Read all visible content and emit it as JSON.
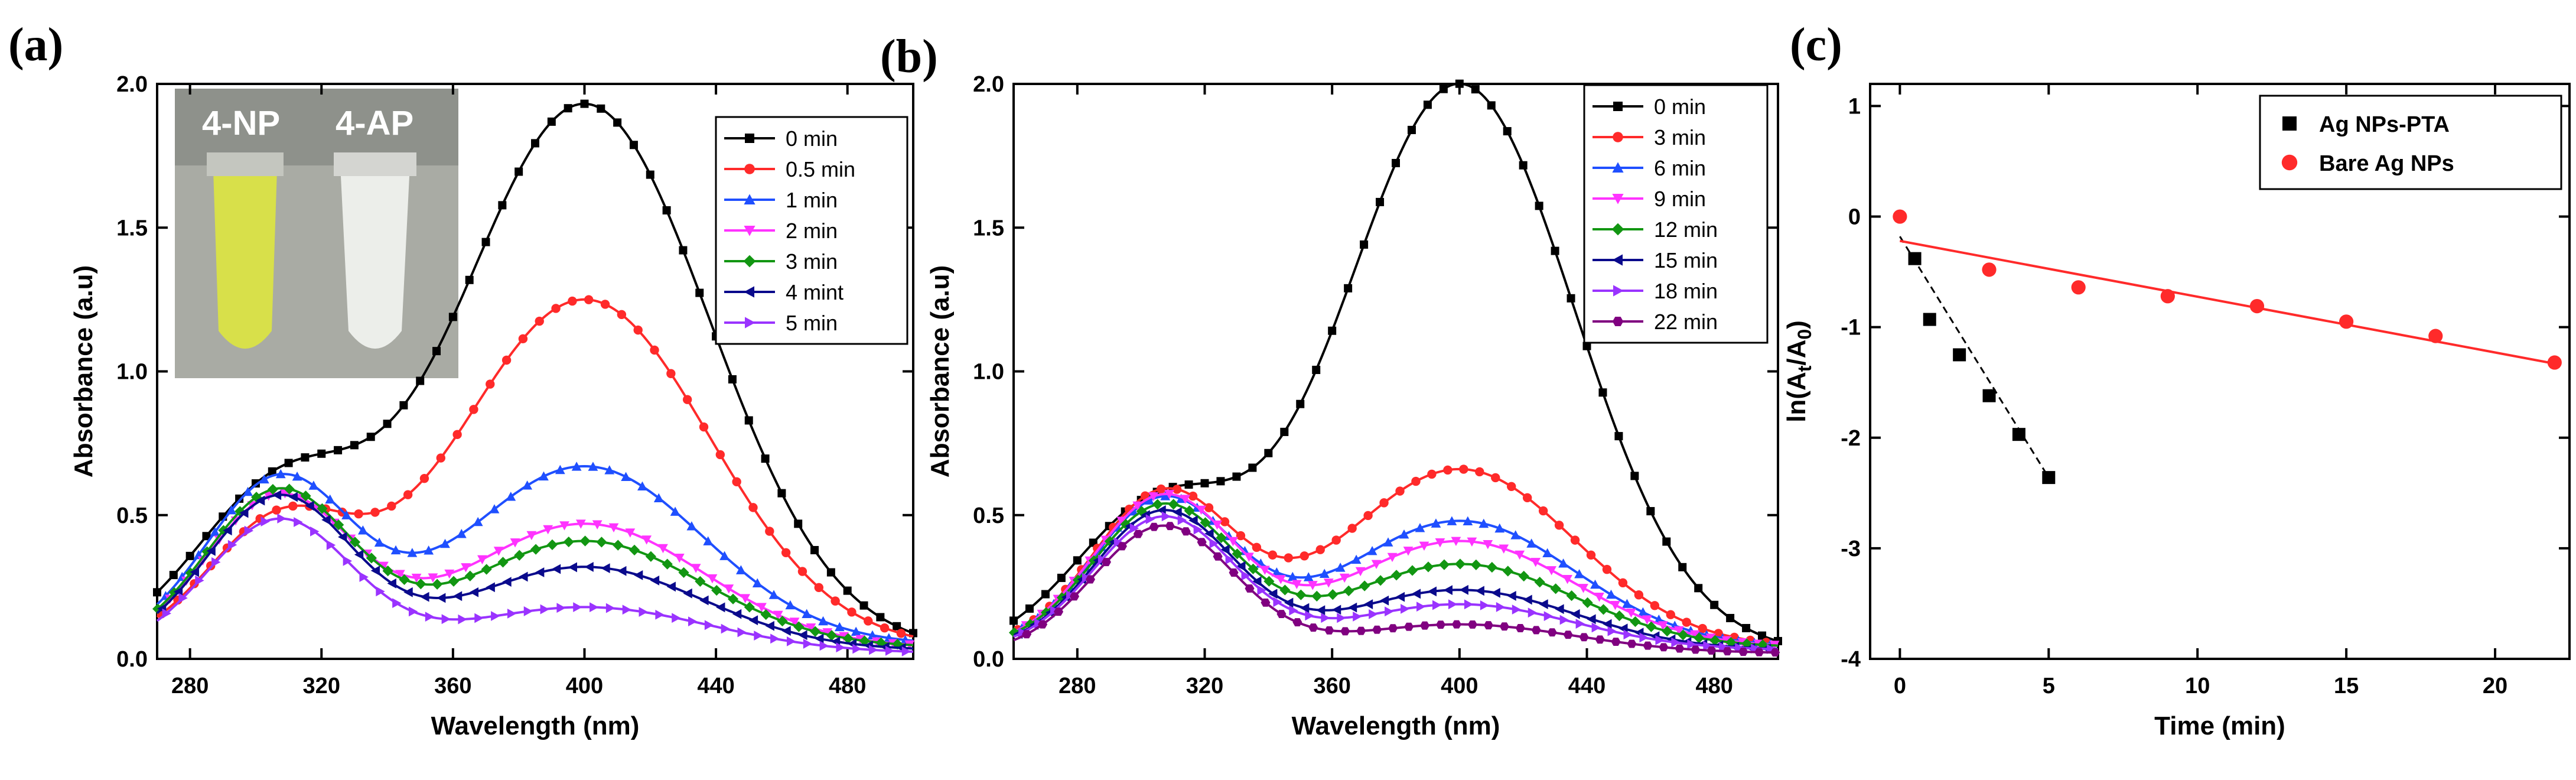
{
  "chart_data": [
    {
      "panel_label": "(a)",
      "type": "line",
      "xlabel": "Wavelength (nm)",
      "ylabel": "Absorbance (a.u)",
      "xlim": [
        270,
        500
      ],
      "ylim": [
        0,
        2.0
      ],
      "xticks": [
        280,
        320,
        360,
        400,
        440,
        480
      ],
      "yticks": [
        0.0,
        0.5,
        1.0,
        1.5,
        2.0
      ],
      "inset": {
        "labels": [
          "4-NP",
          "4-AP"
        ],
        "colors": [
          "#d8e04a",
          "#eceeea"
        ]
      },
      "legend_position": "top-right",
      "series": [
        {
          "name": "0 min",
          "color": "#000000",
          "marker": "square",
          "peaks": [
            [
              307,
              0.54,
              26
            ],
            [
              400,
              1.9,
              38
            ]
          ],
          "base": 0.03
        },
        {
          "name": "0.5 min",
          "color": "#ff2a2a",
          "marker": "circle",
          "peaks": [
            [
              307,
              0.42,
              22
            ],
            [
              400,
              1.21,
              38
            ]
          ],
          "base": 0.04
        },
        {
          "name": "1 min",
          "color": "#1f4fff",
          "marker": "triangle-up",
          "peaks": [
            [
              307,
              0.57,
              22
            ],
            [
              400,
              0.62,
              36
            ]
          ],
          "base": 0.05
        },
        {
          "name": "2 min",
          "color": "#ff33ff",
          "marker": "triangle-down",
          "peaks": [
            [
              307,
              0.52,
              22
            ],
            [
              400,
              0.43,
              36
            ]
          ],
          "base": 0.04
        },
        {
          "name": "3 min",
          "color": "#129612",
          "marker": "diamond",
          "peaks": [
            [
              307,
              0.54,
              22
            ],
            [
              400,
              0.37,
              36
            ]
          ],
          "base": 0.04
        },
        {
          "name": "4 mint",
          "color": "#0a0a8c",
          "marker": "triangle-left",
          "peaks": [
            [
              307,
              0.53,
              22
            ],
            [
              400,
              0.29,
              36
            ]
          ],
          "base": 0.03
        },
        {
          "name": "5 min",
          "color": "#9a33ff",
          "marker": "triangle-right",
          "peaks": [
            [
              307,
              0.46,
              22
            ],
            [
              400,
              0.16,
              38
            ]
          ],
          "base": 0.02
        }
      ]
    },
    {
      "panel_label": "(b)",
      "type": "line",
      "xlabel": "Wavelength (nm)",
      "ylabel": "Absorbance (a.u)",
      "xlim": [
        260,
        500
      ],
      "ylim": [
        0,
        2.0
      ],
      "xticks": [
        280,
        320,
        360,
        400,
        440,
        480
      ],
      "yticks": [
        0.0,
        0.5,
        1.0,
        1.5,
        2.0
      ],
      "legend_position": "top-right",
      "series": [
        {
          "name": "0 min",
          "color": "#000000",
          "marker": "square",
          "peaks": [
            [
              305,
              0.5,
              26
            ],
            [
              400,
              1.98,
              36
            ]
          ],
          "base": 0.02
        },
        {
          "name": "3 min",
          "color": "#ff2a2a",
          "marker": "circle",
          "peaks": [
            [
              307,
              0.53,
              22
            ],
            [
              400,
              0.62,
              36
            ]
          ],
          "base": 0.04
        },
        {
          "name": "6 min",
          "color": "#1f4fff",
          "marker": "triangle-up",
          "peaks": [
            [
              307,
              0.51,
              22
            ],
            [
              400,
              0.44,
              36
            ]
          ],
          "base": 0.04
        },
        {
          "name": "9 min",
          "color": "#ff33ff",
          "marker": "triangle-down",
          "peaks": [
            [
              307,
              0.52,
              22
            ],
            [
              400,
              0.37,
              36
            ]
          ],
          "base": 0.04
        },
        {
          "name": "12 min",
          "color": "#129612",
          "marker": "diamond",
          "peaks": [
            [
              307,
              0.49,
              22
            ],
            [
              400,
              0.29,
              36
            ]
          ],
          "base": 0.04
        },
        {
          "name": "15 min",
          "color": "#0a0a8c",
          "marker": "triangle-left",
          "peaks": [
            [
              307,
              0.48,
              22
            ],
            [
              400,
              0.21,
              36
            ]
          ],
          "base": 0.03
        },
        {
          "name": "18 min",
          "color": "#9a33ff",
          "marker": "triangle-right",
          "peaks": [
            [
              307,
              0.46,
              22
            ],
            [
              400,
              0.16,
              36
            ]
          ],
          "base": 0.03
        },
        {
          "name": "22 min",
          "color": "#800080",
          "marker": "hexagon",
          "peaks": [
            [
              307,
              0.44,
              22
            ],
            [
              400,
              0.1,
              36
            ]
          ],
          "base": 0.02
        }
      ]
    },
    {
      "panel_label": "(c)",
      "type": "scatter",
      "xlabel": "Time (min)",
      "ylabel": "ln(At/A0)",
      "xlim": [
        -1,
        22.5
      ],
      "ylim": [
        -4,
        1.2
      ],
      "xticks": [
        0,
        5,
        10,
        15,
        20
      ],
      "yticks": [
        1,
        0,
        -1,
        -2,
        -3,
        -4
      ],
      "legend_position": "top-right",
      "series": [
        {
          "name": "Ag NPs-PTA",
          "color": "#000000",
          "marker": "square",
          "fit": "dashed",
          "x": [
            0.5,
            1,
            2,
            3,
            4,
            5
          ],
          "y": [
            -0.38,
            -0.93,
            -1.25,
            -1.62,
            -1.97,
            -2.36
          ]
        },
        {
          "name": "Bare Ag NPs",
          "color": "#ff2a2a",
          "marker": "circle",
          "fit": "solid",
          "x": [
            0,
            3,
            6,
            9,
            12,
            15,
            18,
            22
          ],
          "y": [
            0.0,
            -0.48,
            -0.64,
            -0.72,
            -0.81,
            -0.95,
            -1.08,
            -1.32
          ]
        }
      ],
      "fits": [
        {
          "series": "Ag NPs-PTA",
          "x": [
            0,
            5
          ],
          "y": [
            -0.18,
            -2.36
          ]
        },
        {
          "series": "Bare Ag NPs",
          "x": [
            0,
            22
          ],
          "y": [
            -0.22,
            -1.33
          ]
        }
      ]
    }
  ]
}
